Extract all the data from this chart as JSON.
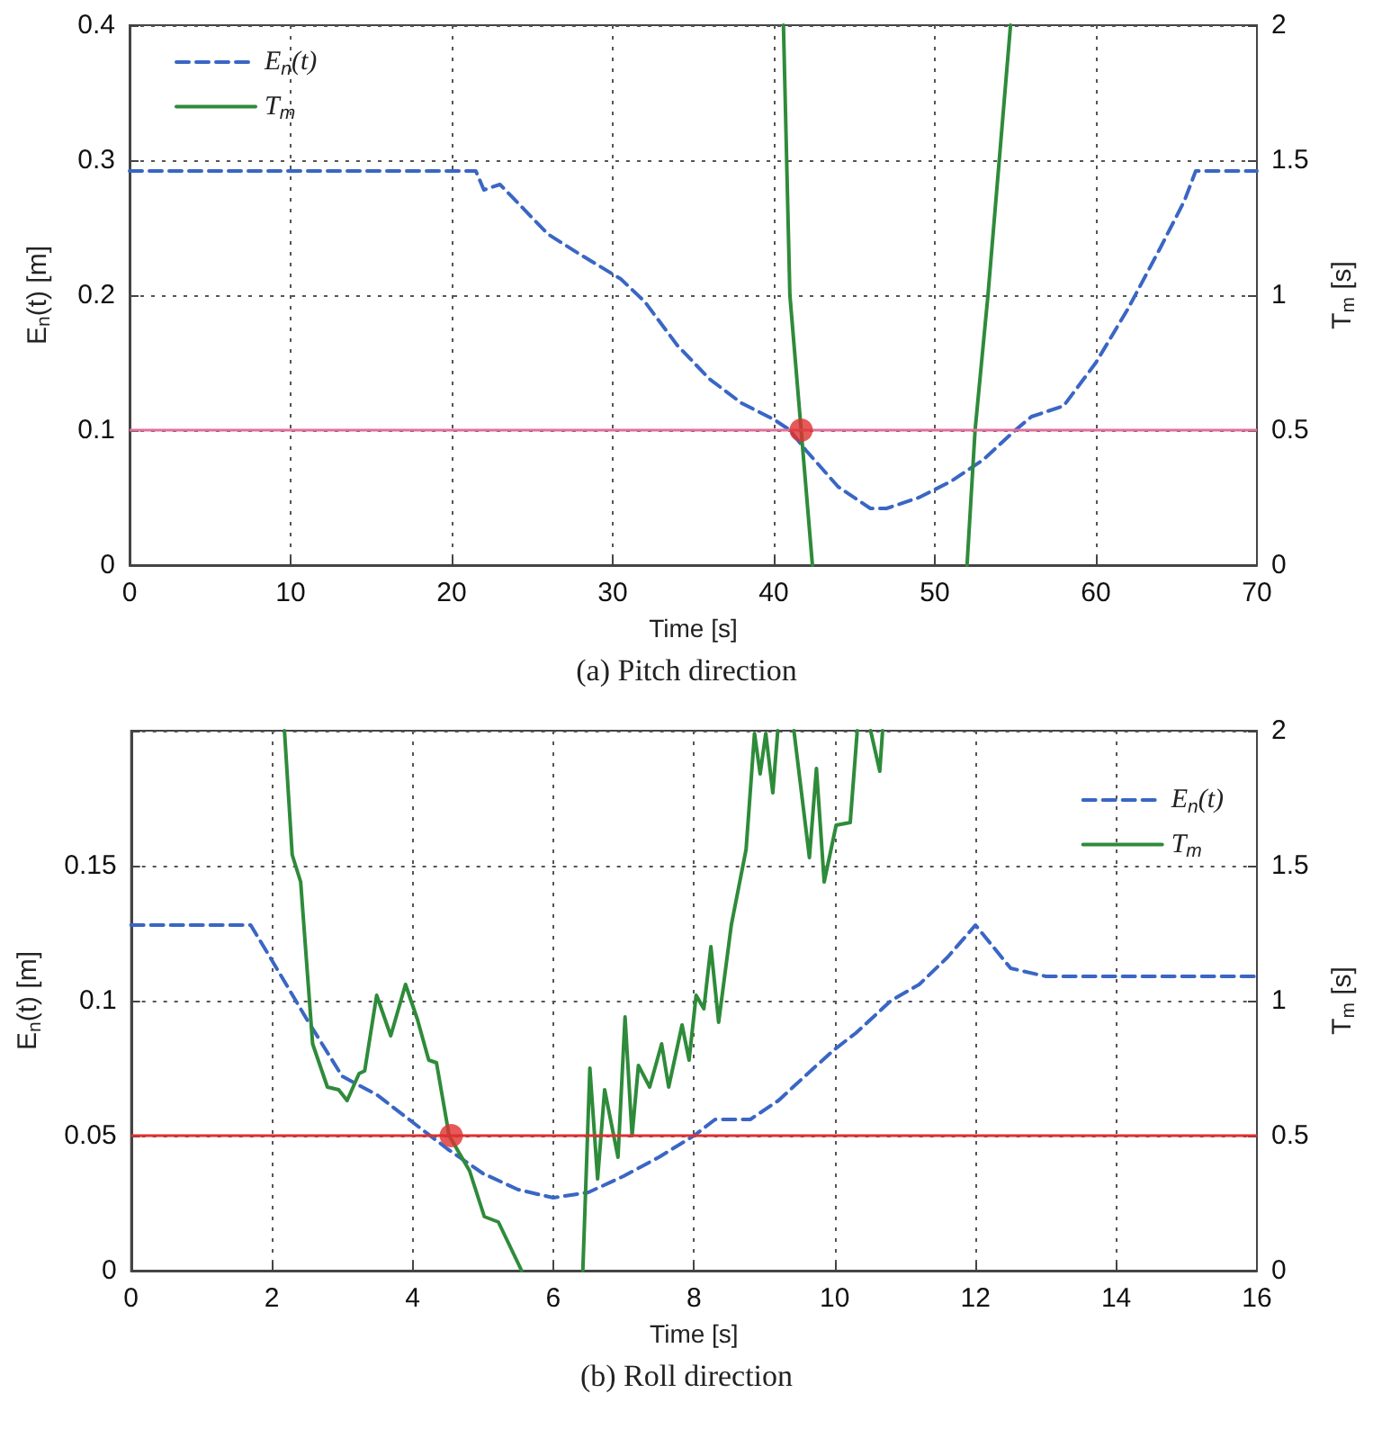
{
  "chart_data": [
    {
      "type": "line",
      "title": "(a) Pitch direction",
      "xlabel": "Time [s]",
      "ylabel": "E$_{n}$(t) [m]",
      "y2label": "T$_{m}$ [s]",
      "xlim": [
        0,
        70
      ],
      "xticks": [
        0,
        10,
        20,
        30,
        40,
        50,
        60,
        70
      ],
      "ylim": [
        0,
        0.4
      ],
      "yticks": [
        0,
        0.1,
        0.2,
        0.3,
        0.4
      ],
      "y2lim": [
        0,
        2
      ],
      "y2ticks": [
        0,
        0.5,
        1,
        1.5,
        2
      ],
      "grid": true,
      "legend": "top left",
      "ref_lines": [
        {
          "axis": "y",
          "value": 0.1,
          "color": "#e0709a",
          "line_style": "solid"
        }
      ],
      "series": [
        {
          "name": "E$_{n}$(t)",
          "color": "#3a66c4",
          "line_style": "dashed",
          "marker": "none",
          "x": [
            0,
            21.5,
            22,
            23,
            26,
            28,
            30.5,
            32,
            34,
            36,
            38,
            40,
            41,
            42,
            44,
            46,
            47,
            49,
            51,
            53,
            55,
            56,
            58,
            60,
            62,
            64,
            65.5,
            66.2,
            70
          ],
          "values": [
            0.292,
            0.292,
            0.278,
            0.282,
            0.245,
            0.23,
            0.212,
            0.195,
            0.163,
            0.138,
            0.12,
            0.108,
            0.1,
            0.085,
            0.058,
            0.042,
            0.042,
            0.05,
            0.062,
            0.078,
            0.1,
            0.11,
            0.118,
            0.15,
            0.19,
            0.235,
            0.27,
            0.292,
            0.292
          ]
        },
        {
          "name": "T$_{m}$",
          "axis": "y2",
          "color": "#2e8b3a",
          "line_style": "solid",
          "marker": "none",
          "x": [
            40.6,
            41,
            41.7,
            42.4,
            47,
            52,
            52.5,
            53.3,
            54,
            54.7
          ],
          "values": [
            2,
            1,
            0.5,
            0,
            null,
            0,
            0.5,
            1,
            1.5,
            2
          ]
        },
        {
          "type": "scatter",
          "color": "#e03030",
          "marker": "circle",
          "x": [
            41.7
          ],
          "values": [
            0.1
          ]
        }
      ]
    },
    {
      "type": "line",
      "title": "(b) Roll direction",
      "xlabel": "Time [s]",
      "ylabel": "E$_{n}$(t) [m]",
      "y2label": "T$_{m}$ [s]",
      "xlim": [
        0,
        16
      ],
      "xticks": [
        0,
        2,
        4,
        6,
        8,
        10,
        12,
        14,
        16
      ],
      "ylim": [
        0,
        0.2
      ],
      "yticks": [
        0,
        0.05,
        0.1,
        0.15
      ],
      "y2lim": [
        0,
        2
      ],
      "y2ticks": [
        0,
        0.5,
        1,
        1.5,
        2
      ],
      "grid": true,
      "legend": "top right",
      "ref_lines": [
        {
          "axis": "y",
          "value": 0.05,
          "color": "#e03030",
          "line_style": "solid"
        }
      ],
      "series": [
        {
          "name": "E$_{n}$(t)",
          "color": "#3a66c4",
          "line_style": "dashed",
          "marker": "none",
          "x": [
            0,
            1.7,
            2,
            2.5,
            3,
            3.5,
            4,
            4.5,
            5,
            5.5,
            6,
            6.5,
            7,
            7.5,
            8,
            8.3,
            8.8,
            9.2,
            9.7,
            10,
            10.3,
            10.8,
            11.2,
            11.6,
            12,
            12.5,
            13,
            16
          ],
          "values": [
            0.128,
            0.128,
            0.115,
            0.093,
            0.072,
            0.065,
            0.055,
            0.045,
            0.036,
            0.03,
            0.027,
            0.029,
            0.035,
            0.042,
            0.05,
            0.056,
            0.056,
            0.063,
            0.075,
            0.082,
            0.088,
            0.1,
            0.106,
            0.116,
            0.128,
            0.112,
            0.109,
            0.109
          ]
        },
        {
          "name": "T$_{m}$",
          "axis": "y2",
          "color": "#2e8b3a",
          "line_style": "solid",
          "marker": "none",
          "x": [
            2.18,
            2.29,
            2.41,
            2.58,
            2.79,
            2.95,
            3.07,
            3.24,
            3.32,
            3.49,
            3.69,
            3.9,
            4.07,
            4.23,
            4.34,
            4.52,
            4.81,
            5.02,
            5.22,
            5.55,
            6,
            6.42,
            6.52,
            6.63,
            6.73,
            6.92,
            7.02,
            7.12,
            7.21,
            7.37,
            7.54,
            7.64,
            7.83,
            7.93,
            8.03,
            8.14,
            8.24,
            8.35,
            8.53,
            8.74,
            8.86,
            8.94,
            9.02,
            9.12,
            9.19,
            9.3,
            9.42,
            9.64,
            9.74,
            9.85,
            10.02,
            10.22,
            10.32,
            10.4,
            10.51,
            10.64,
            10.68
          ],
          "values": [
            2,
            1.54,
            1.44,
            0.84,
            0.68,
            0.67,
            0.63,
            0.73,
            0.74,
            1.02,
            0.87,
            1.06,
            0.93,
            0.78,
            0.77,
            0.5,
            0.37,
            0.2,
            0.18,
            0,
            null,
            0,
            0.75,
            0.34,
            0.67,
            0.42,
            0.94,
            0.5,
            0.76,
            0.68,
            0.84,
            0.68,
            0.91,
            0.78,
            1.02,
            0.97,
            1.2,
            0.92,
            1.28,
            1.56,
            1.99,
            1.84,
            1.99,
            1.77,
            2,
            null,
            2,
            1.53,
            1.86,
            1.44,
            1.65,
            1.66,
            2,
            null,
            2,
            1.85,
            2
          ]
        },
        {
          "type": "scatter",
          "color": "#e03030",
          "marker": "circle",
          "x": [
            4.55
          ],
          "values": [
            0.05
          ]
        }
      ]
    }
  ]
}
